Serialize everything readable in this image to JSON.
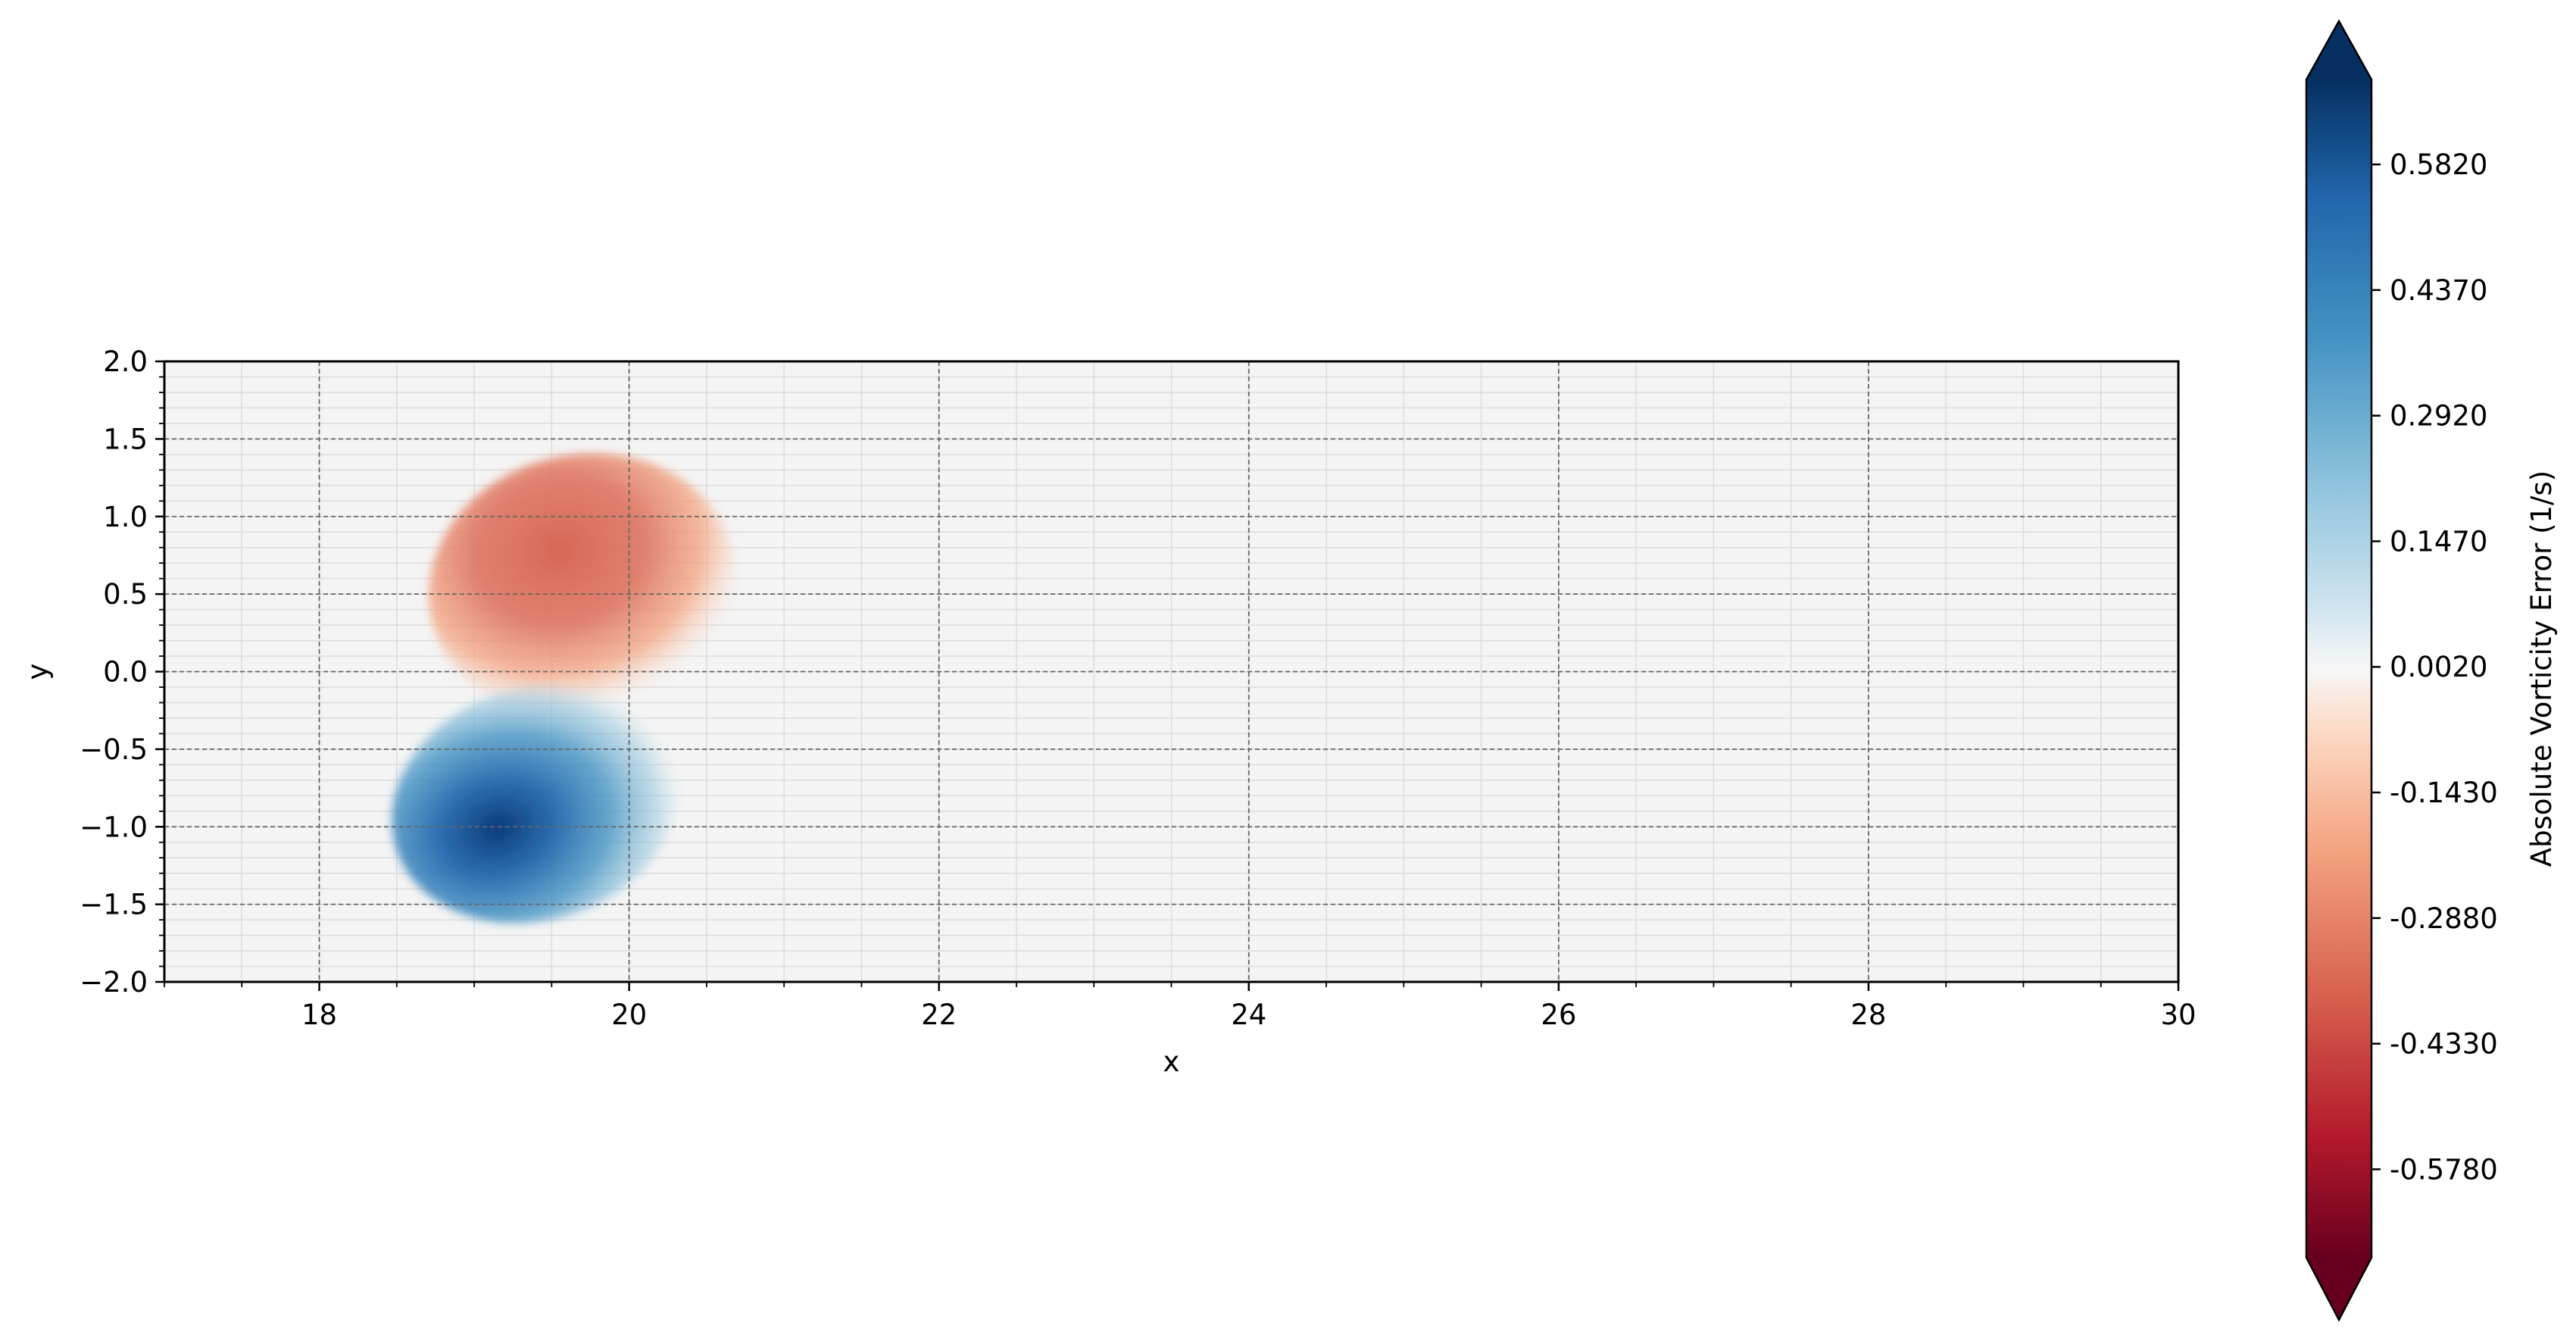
{
  "chart_data": {
    "type": "heatmap",
    "title": "",
    "xlabel": "x",
    "ylabel": "y",
    "xlim": [
      17,
      30
    ],
    "ylim": [
      -2.0,
      2.0
    ],
    "x_ticks": [
      "18",
      "20",
      "22",
      "24",
      "26",
      "28",
      "30"
    ],
    "y_ticks": [
      "2.0",
      "1.5",
      "1.0",
      "0.5",
      "0.0",
      "−0.5",
      "−1.0",
      "−1.5",
      "−2.0"
    ],
    "x_tick_values": [
      18,
      20,
      22,
      24,
      26,
      28,
      30
    ],
    "y_tick_values": [
      2.0,
      1.5,
      1.0,
      0.5,
      0.0,
      -0.5,
      -1.0,
      -1.5,
      -2.0
    ],
    "grid": true,
    "grid_style": "dashed major, light minor",
    "colormap": "RdBu",
    "colorbar": {
      "label": "Absolute Vorticity Error (1/s)",
      "ticks": [
        "0.5820",
        "0.4370",
        "0.2920",
        "0.1470",
        "0.0020",
        "-0.1430",
        "-0.2880",
        "-0.4330",
        "-0.5780"
      ],
      "tick_values": [
        0.582,
        0.437,
        0.292,
        0.147,
        0.002,
        -0.143,
        -0.288,
        -0.433,
        -0.578
      ],
      "range": [
        -0.68,
        0.68
      ],
      "extend": "both",
      "top_color": "#053061",
      "bottom_color": "#67001f"
    },
    "features": [
      {
        "sign": "negative",
        "description_value_min": -0.43,
        "center": [
          19.7,
          0.55
        ],
        "radius_x": 1.0,
        "radius_y": 0.85
      },
      {
        "sign": "positive",
        "description_value_max": 0.68,
        "center": [
          19.4,
          -0.85
        ],
        "radius_x": 0.95,
        "radius_y": 0.75
      }
    ]
  }
}
